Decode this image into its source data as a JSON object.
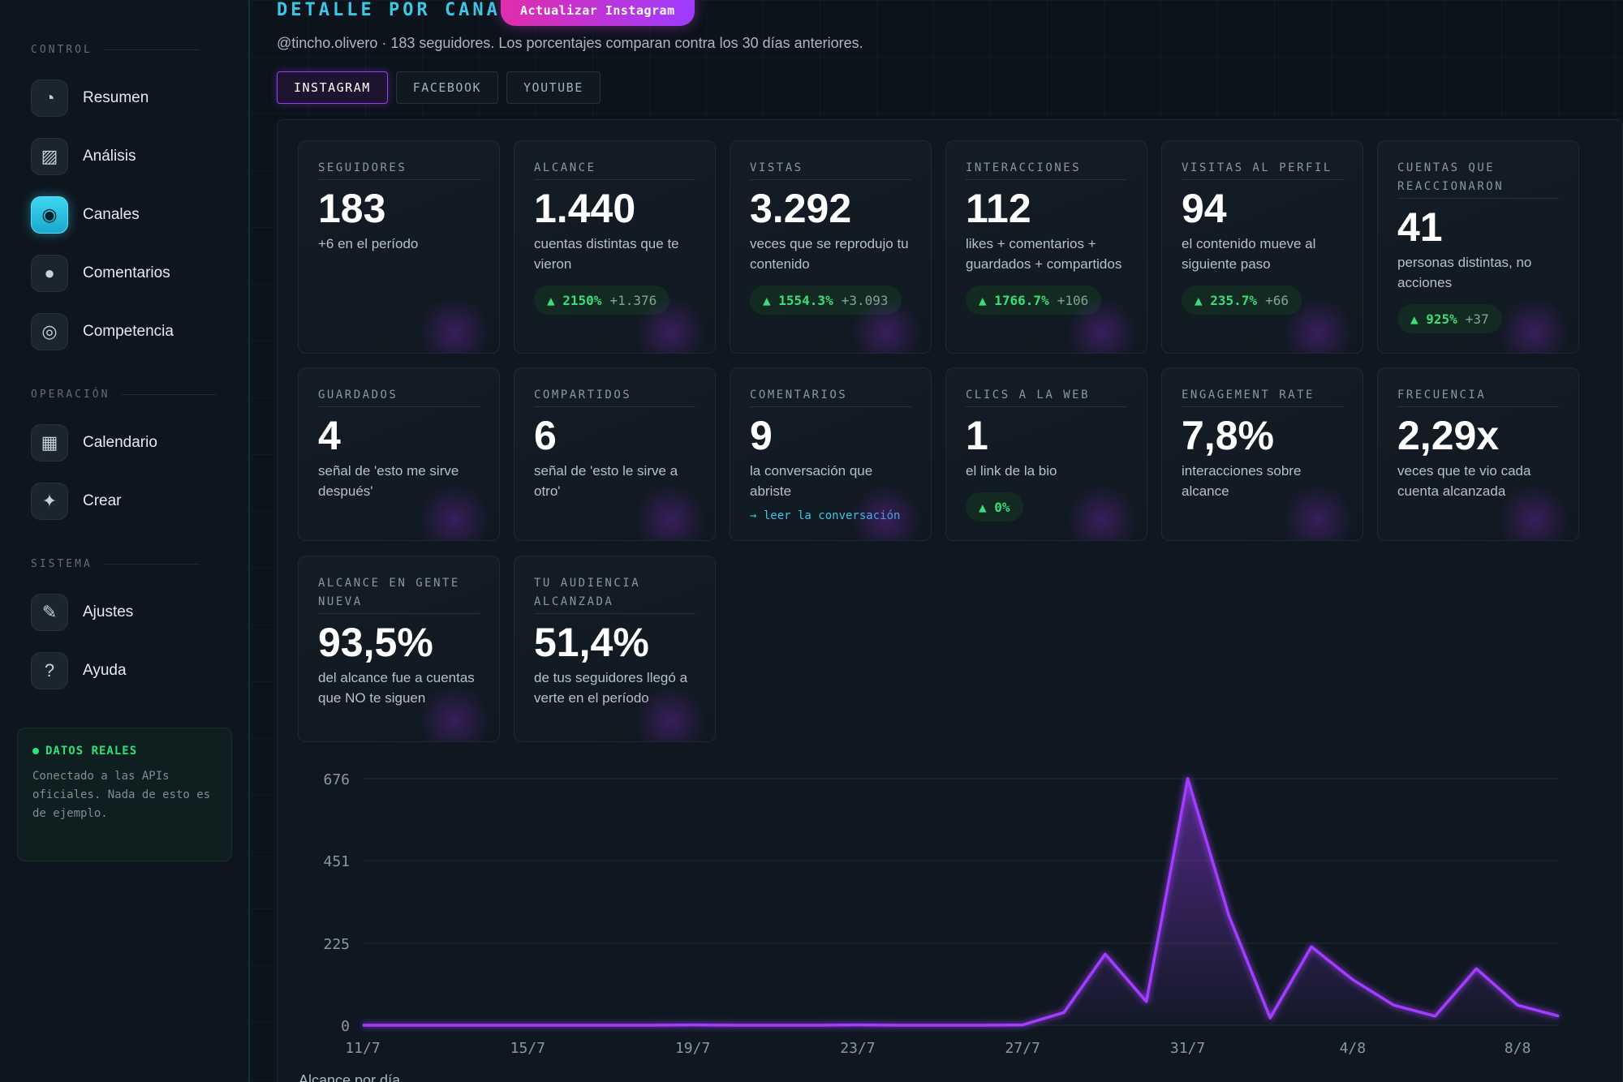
{
  "sidebar": {
    "sections": [
      {
        "title": "CONTROL",
        "items": [
          {
            "label": "Resumen",
            "icon": "dashboard-icon"
          },
          {
            "label": "Análisis",
            "icon": "image-chart-icon"
          },
          {
            "label": "Canales",
            "icon": "broadcast-icon",
            "active": true
          },
          {
            "label": "Comentarios",
            "icon": "chat-icon"
          },
          {
            "label": "Competencia",
            "icon": "target-icon"
          }
        ]
      },
      {
        "title": "OPERACIÓN",
        "items": [
          {
            "label": "Calendario",
            "icon": "calendar-icon"
          },
          {
            "label": "Crear",
            "icon": "sparkle-icon"
          }
        ]
      },
      {
        "title": "SISTEMA",
        "items": [
          {
            "label": "Ajustes",
            "icon": "wrench-icon"
          },
          {
            "label": "Ayuda",
            "icon": "help-icon"
          }
        ]
      }
    ],
    "data_box": {
      "title": "DATOS REALES",
      "text": "Conectado a las APIs oficiales. Nada de esto es de ejemplo."
    }
  },
  "header": {
    "title": "DETALLE POR CANAL",
    "update_button": "Actualizar Instagram",
    "subtitle": "@tincho.olivero · 183 seguidores. Los porcentajes comparan contra los 30 días anteriores."
  },
  "tabs": [
    "INSTAGRAM",
    "FACEBOOK",
    "YOUTUBE"
  ],
  "active_tab": "INSTAGRAM",
  "cards": [
    {
      "label": "SEGUIDORES",
      "value": "183",
      "desc": "+6 en el período"
    },
    {
      "label": "ALCANCE",
      "value": "1.440",
      "desc": "cuentas distintas que te vieron",
      "badge_pct": "▲ 2150%",
      "badge_abs": "+1.376"
    },
    {
      "label": "VISTAS",
      "value": "3.292",
      "desc": "veces que se reprodujo tu contenido",
      "badge_pct": "▲ 1554.3%",
      "badge_abs": "+3.093"
    },
    {
      "label": "INTERACCIONES",
      "value": "112",
      "desc": "likes + comentarios + guardados + compartidos",
      "badge_pct": "▲ 1766.7%",
      "badge_abs": "+106"
    },
    {
      "label": "VISITAS AL PERFIL",
      "value": "94",
      "desc": "el contenido mueve al siguiente paso",
      "badge_pct": "▲ 235.7%",
      "badge_abs": "+66"
    },
    {
      "label": "CUENTAS QUE REACCIONARON",
      "value": "41",
      "desc": "personas distintas, no acciones",
      "badge_pct": "▲ 925%",
      "badge_abs": "+37"
    },
    {
      "label": "GUARDADOS",
      "value": "4",
      "desc": "señal de 'esto me sirve después'"
    },
    {
      "label": "COMPARTIDOS",
      "value": "6",
      "desc": "señal de 'esto le sirve a otro'"
    },
    {
      "label": "COMENTARIOS",
      "value": "9",
      "desc": "la conversación que abriste",
      "link": "→ leer la conversación"
    },
    {
      "label": "CLICS A LA WEB",
      "value": "1",
      "desc": "el link de la bio",
      "badge_pct": "▲ 0%",
      "badge_abs": ""
    },
    {
      "label": "ENGAGEMENT RATE",
      "value": "7,8%",
      "desc": "interacciones sobre alcance"
    },
    {
      "label": "FRECUENCIA",
      "value": "2,29x",
      "desc": "veces que te vio cada cuenta alcanzada"
    },
    {
      "label": "ALCANCE EN GENTE NUEVA",
      "value": "93,5%",
      "desc": "del alcance fue a cuentas que NO te siguen"
    },
    {
      "label": "TU AUDIENCIA ALCANZADA",
      "value": "51,4%",
      "desc": "de tus seguidores llegó a verte en el período"
    }
  ],
  "chart_data": {
    "type": "area",
    "caption": "Alcance por día",
    "x": [
      "11/7",
      "12/7",
      "13/7",
      "14/7",
      "15/7",
      "16/7",
      "17/7",
      "18/7",
      "19/7",
      "20/7",
      "21/7",
      "22/7",
      "23/7",
      "24/7",
      "25/7",
      "26/7",
      "27/7",
      "28/7",
      "29/7",
      "30/7",
      "31/7",
      "1/8",
      "2/8",
      "3/8",
      "4/8",
      "5/8",
      "6/8",
      "7/8",
      "8/8",
      "9/8"
    ],
    "x_ticks": [
      "11/7",
      "15/7",
      "19/7",
      "23/7",
      "27/7",
      "31/7",
      "4/8",
      "8/8"
    ],
    "y_ticks": [
      0,
      225,
      451,
      676
    ],
    "ylim": [
      0,
      676
    ],
    "values": [
      0,
      0,
      0,
      0,
      0,
      0,
      0,
      0,
      1,
      0,
      0,
      0,
      1,
      0,
      0,
      0,
      1,
      35,
      195,
      65,
      676,
      300,
      20,
      215,
      125,
      55,
      25,
      155,
      55,
      25
    ],
    "color": "#a23cff",
    "grid": true
  }
}
